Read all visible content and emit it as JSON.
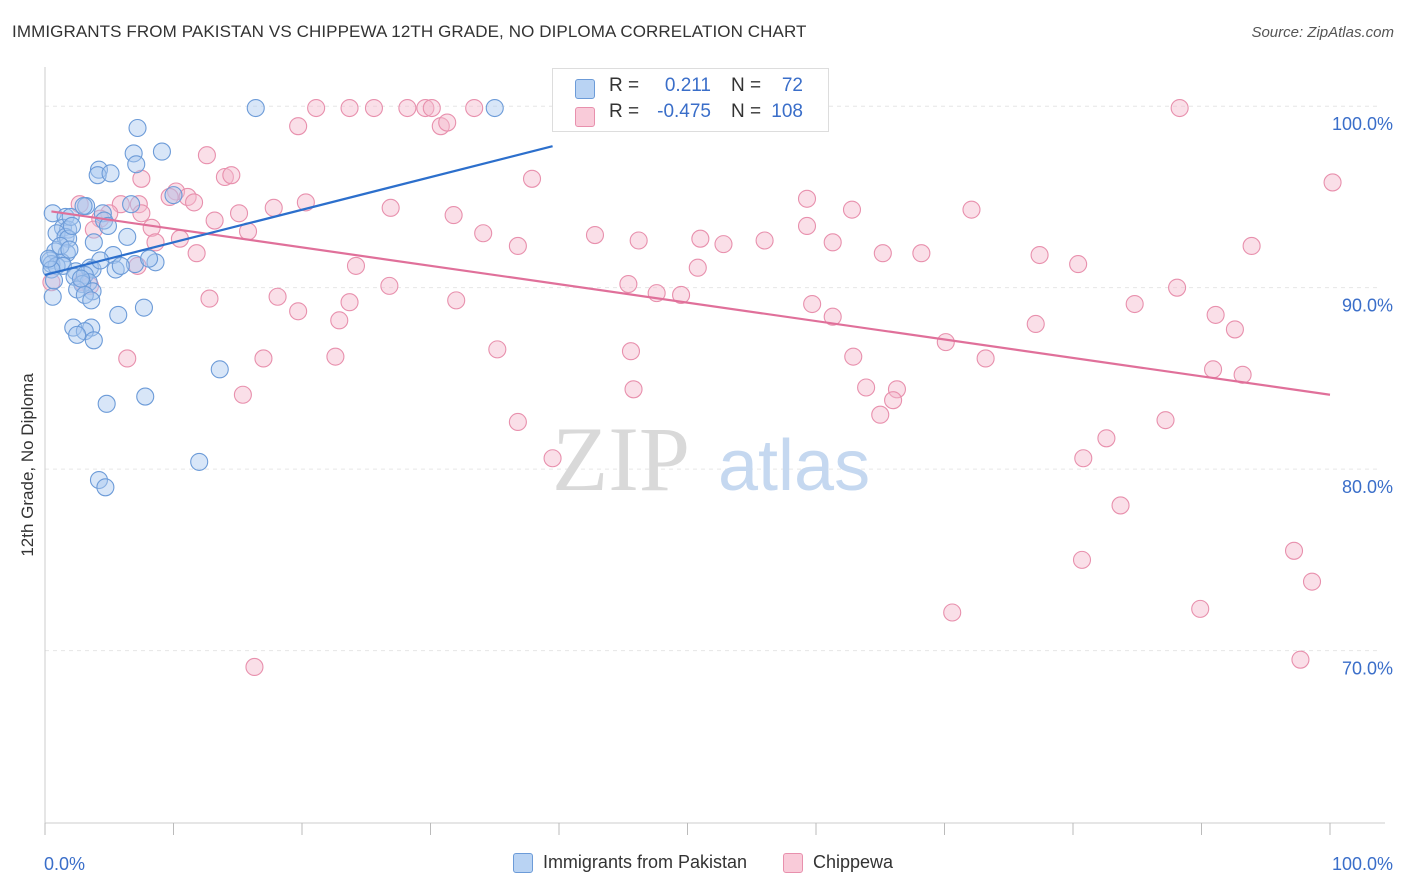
{
  "title": "IMMIGRANTS FROM PAKISTAN VS CHIPPEWA 12TH GRADE, NO DIPLOMA CORRELATION CHART",
  "source": "Source: ZipAtlas.com",
  "watermark": {
    "zip": "ZIP",
    "atlas": "atlas"
  },
  "colors": {
    "blue_fill": "#a9c8ef",
    "blue_stroke": "#6c9bd8",
    "blue_line": "#2c6fcc",
    "pink_fill": "#f4b9cc",
    "pink_stroke": "#e890ad",
    "pink_line": "#e0709a",
    "axis_text": "#3a6ec9",
    "grid": "#e6e6e6"
  },
  "stats": {
    "rows": [
      {
        "r_label": "R =",
        "r_value": "0.211",
        "n_label": "N =",
        "n_value": "72"
      },
      {
        "r_label": "R =",
        "r_value": "-0.475",
        "n_label": "N =",
        "n_value": "108"
      }
    ]
  },
  "legend": {
    "items": [
      {
        "label": "Immigrants from Pakistan"
      },
      {
        "label": "Chippewa"
      }
    ]
  },
  "chart_data": {
    "type": "scatter",
    "title": "IMMIGRANTS FROM PAKISTAN VS CHIPPEWA 12TH GRADE, NO DIPLOMA CORRELATION CHART",
    "xlabel": "",
    "ylabel": "12th Grade, No Diploma",
    "xlim": [
      0,
      100
    ],
    "ylim": [
      60.5,
      101.5
    ],
    "x_tick_labels": [
      "0.0%",
      "100.0%"
    ],
    "y_ticks": [
      70,
      80,
      90,
      100
    ],
    "y_tick_labels": [
      "70.0%",
      "80.0%",
      "90.0%",
      "100.0%"
    ],
    "grid": true,
    "legend_position": "bottom",
    "series": [
      {
        "name": "Immigrants from Pakistan",
        "trend": {
          "x": [
            0,
            39.5
          ],
          "y": [
            90.7,
            97.8
          ]
        },
        "points": [
          [
            16.4,
            99.9
          ],
          [
            35,
            99.9
          ],
          [
            7.2,
            98.8
          ],
          [
            9.1,
            97.5
          ],
          [
            6.9,
            97.4
          ],
          [
            4.2,
            96.5
          ],
          [
            7.1,
            96.8
          ],
          [
            4.1,
            96.2
          ],
          [
            5.1,
            96.3
          ],
          [
            10,
            95.1
          ],
          [
            6.7,
            94.6
          ],
          [
            3.2,
            94.5
          ],
          [
            0.6,
            94.1
          ],
          [
            1.6,
            93.9
          ],
          [
            4.5,
            94.1
          ],
          [
            4.6,
            93.7
          ],
          [
            4.9,
            93.4
          ],
          [
            1.4,
            93.3
          ],
          [
            1.8,
            93.2
          ],
          [
            0.9,
            93
          ],
          [
            1.6,
            92.8
          ],
          [
            6.4,
            92.8
          ],
          [
            1.8,
            92.7
          ],
          [
            3.8,
            92.5
          ],
          [
            0.8,
            92
          ],
          [
            1.7,
            91.9
          ],
          [
            0.4,
            91.5
          ],
          [
            1.3,
            91.4
          ],
          [
            5.3,
            91.8
          ],
          [
            0.5,
            91.3
          ],
          [
            0.9,
            91.2
          ],
          [
            1.4,
            91.2
          ],
          [
            3.5,
            91.1
          ],
          [
            3.7,
            91
          ],
          [
            5.5,
            91
          ],
          [
            0.5,
            91
          ],
          [
            2.4,
            90.9
          ],
          [
            2.3,
            90.6
          ],
          [
            3.1,
            90.7
          ],
          [
            3.4,
            90.3
          ],
          [
            2.9,
            90.2
          ],
          [
            2.5,
            89.9
          ],
          [
            3.7,
            89.8
          ],
          [
            3.1,
            89.6
          ],
          [
            0.6,
            89.5
          ],
          [
            3.6,
            89.3
          ],
          [
            7.7,
            88.9
          ],
          [
            5.7,
            88.5
          ],
          [
            2.2,
            87.8
          ],
          [
            3.6,
            87.8
          ],
          [
            3.1,
            87.6
          ],
          [
            2.5,
            87.4
          ],
          [
            3.8,
            87.1
          ],
          [
            13.6,
            85.5
          ],
          [
            7.8,
            84
          ],
          [
            4.8,
            83.6
          ],
          [
            12,
            80.4
          ],
          [
            4.2,
            79.4
          ],
          [
            4.7,
            79
          ],
          [
            7,
            91.3
          ],
          [
            8.6,
            91.4
          ],
          [
            8.1,
            91.6
          ],
          [
            2,
            93.9
          ],
          [
            3,
            94.5
          ],
          [
            0.7,
            90.4
          ],
          [
            1.2,
            92.3
          ],
          [
            2.8,
            90.5
          ],
          [
            4.3,
            91.5
          ],
          [
            1.9,
            92.1
          ],
          [
            0.3,
            91.6
          ],
          [
            2.1,
            93.4
          ],
          [
            5.9,
            91.2
          ]
        ]
      },
      {
        "name": "Chippewa",
        "trend": {
          "x": [
            0.5,
            100
          ],
          "y": [
            94.2,
            84.1
          ]
        },
        "points": [
          [
            21.1,
            99.9
          ],
          [
            23.7,
            99.9
          ],
          [
            25.6,
            99.9
          ],
          [
            28.2,
            99.9
          ],
          [
            29.6,
            99.9
          ],
          [
            30.1,
            99.9
          ],
          [
            33.4,
            99.9
          ],
          [
            19.7,
            98.9
          ],
          [
            30.8,
            98.9
          ],
          [
            31.3,
            99.1
          ],
          [
            88.3,
            99.9
          ],
          [
            12.6,
            97.3
          ],
          [
            14,
            96.1
          ],
          [
            14.5,
            96.2
          ],
          [
            7.5,
            96
          ],
          [
            37.9,
            96
          ],
          [
            10.2,
            95.3
          ],
          [
            11.1,
            95
          ],
          [
            9.7,
            95
          ],
          [
            11.6,
            94.7
          ],
          [
            5.9,
            94.6
          ],
          [
            2.7,
            94.6
          ],
          [
            20.3,
            94.7
          ],
          [
            7.3,
            94.6
          ],
          [
            17.8,
            94.4
          ],
          [
            26.9,
            94.4
          ],
          [
            15.1,
            94.1
          ],
          [
            31.8,
            94
          ],
          [
            5,
            94.1
          ],
          [
            7.5,
            94.1
          ],
          [
            72.1,
            94.3
          ],
          [
            62.8,
            94.3
          ],
          [
            59.3,
            94.9
          ],
          [
            4.3,
            93.8
          ],
          [
            13.2,
            93.7
          ],
          [
            8.3,
            93.3
          ],
          [
            3.8,
            93.2
          ],
          [
            15.8,
            93.1
          ],
          [
            34.1,
            93
          ],
          [
            42.8,
            92.9
          ],
          [
            46.2,
            92.6
          ],
          [
            51,
            92.7
          ],
          [
            56,
            92.6
          ],
          [
            61.3,
            92.5
          ],
          [
            10.5,
            92.7
          ],
          [
            52.8,
            92.4
          ],
          [
            8.6,
            92.5
          ],
          [
            36.8,
            92.3
          ],
          [
            59.3,
            93.4
          ],
          [
            11.8,
            91.9
          ],
          [
            65.2,
            91.9
          ],
          [
            68.2,
            91.9
          ],
          [
            77.4,
            91.8
          ],
          [
            80.4,
            91.3
          ],
          [
            24.2,
            91.2
          ],
          [
            7.2,
            91.2
          ],
          [
            50.8,
            91.1
          ],
          [
            93.9,
            92.3
          ],
          [
            45.4,
            90.2
          ],
          [
            88.1,
            90
          ],
          [
            2.9,
            90.3
          ],
          [
            26.8,
            90.1
          ],
          [
            47.6,
            89.7
          ],
          [
            49.5,
            89.6
          ],
          [
            3.5,
            90.1
          ],
          [
            0.5,
            90.3
          ],
          [
            12.8,
            89.4
          ],
          [
            18.1,
            89.5
          ],
          [
            23.7,
            89.2
          ],
          [
            32,
            89.3
          ],
          [
            59.7,
            89.1
          ],
          [
            84.8,
            89.1
          ],
          [
            19.7,
            88.7
          ],
          [
            22.9,
            88.2
          ],
          [
            61.3,
            88.4
          ],
          [
            77.1,
            88
          ],
          [
            91.1,
            88.5
          ],
          [
            92.6,
            87.7
          ],
          [
            70.1,
            87
          ],
          [
            35.2,
            86.6
          ],
          [
            45.6,
            86.5
          ],
          [
            6.4,
            86.1
          ],
          [
            17,
            86.1
          ],
          [
            22.6,
            86.2
          ],
          [
            62.9,
            86.2
          ],
          [
            73.2,
            86.1
          ],
          [
            90.9,
            85.5
          ],
          [
            93.2,
            85.2
          ],
          [
            63.9,
            84.5
          ],
          [
            66.3,
            84.4
          ],
          [
            45.8,
            84.4
          ],
          [
            15.4,
            84.1
          ],
          [
            66,
            83.8
          ],
          [
            65,
            83
          ],
          [
            87.2,
            82.7
          ],
          [
            36.8,
            82.6
          ],
          [
            82.6,
            81.7
          ],
          [
            39.5,
            80.6
          ],
          [
            80.8,
            80.6
          ],
          [
            83.7,
            78
          ],
          [
            80.7,
            75
          ],
          [
            97.2,
            75.5
          ],
          [
            98.6,
            73.8
          ],
          [
            89.9,
            72.3
          ],
          [
            70.6,
            72.1
          ],
          [
            97.7,
            69.5
          ],
          [
            16.3,
            69.1
          ],
          [
            100.2,
            95.8
          ]
        ]
      }
    ]
  }
}
